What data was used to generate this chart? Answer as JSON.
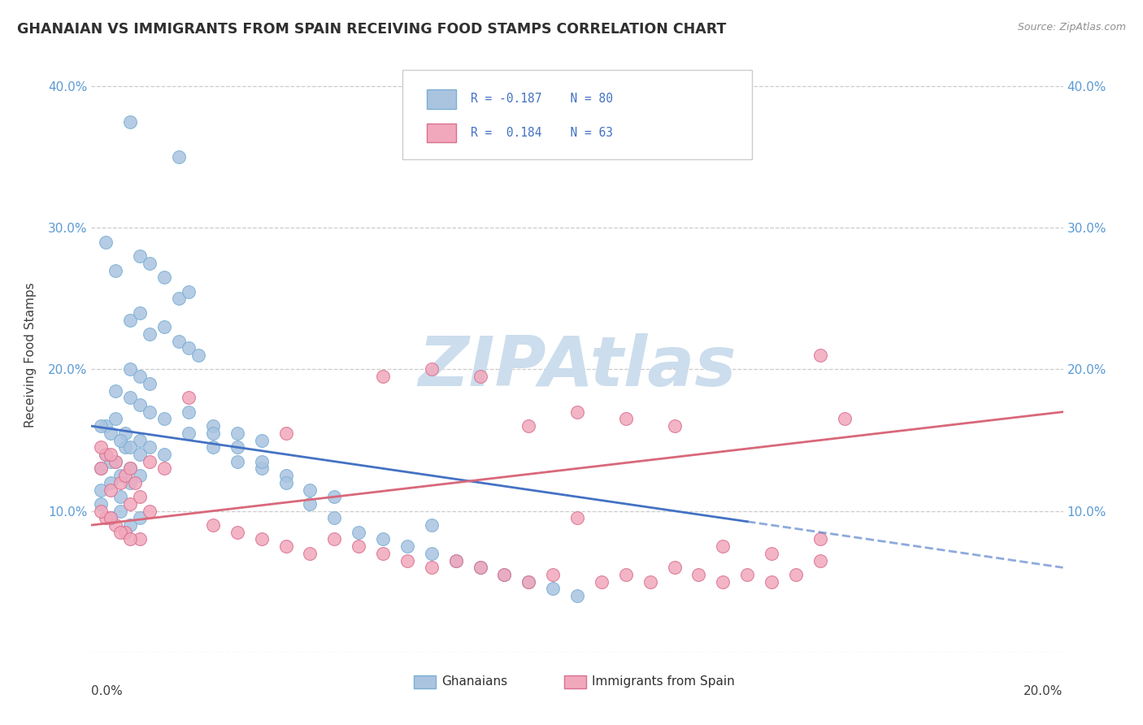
{
  "title": "GHANAIAN VS IMMIGRANTS FROM SPAIN RECEIVING FOOD STAMPS CORRELATION CHART",
  "source": "Source: ZipAtlas.com",
  "ylabel": "Receiving Food Stamps",
  "xlim": [
    0.0,
    0.2
  ],
  "ylim": [
    0.0,
    0.42
  ],
  "yticks": [
    0.0,
    0.1,
    0.2,
    0.3,
    0.4
  ],
  "ytick_labels": [
    "",
    "10.0%",
    "20.0%",
    "30.0%",
    "40.0%"
  ],
  "color_blue": "#aac4e0",
  "color_pink": "#f2a8bc",
  "line_color_blue": "#4472c4",
  "line_color_pink": "#d9687a",
  "watermark": "ZIPAtlas",
  "watermark_color": "#ccdded",
  "legend_blue": "Ghanaians",
  "legend_pink": "Immigrants from Spain",
  "blue_x": [
    0.008,
    0.018,
    0.003,
    0.005,
    0.01,
    0.012,
    0.015,
    0.018,
    0.02,
    0.008,
    0.01,
    0.012,
    0.015,
    0.018,
    0.02,
    0.022,
    0.008,
    0.01,
    0.012,
    0.005,
    0.008,
    0.01,
    0.012,
    0.015,
    0.003,
    0.005,
    0.007,
    0.01,
    0.012,
    0.003,
    0.005,
    0.007,
    0.008,
    0.01,
    0.002,
    0.004,
    0.006,
    0.008,
    0.01,
    0.002,
    0.004,
    0.006,
    0.008,
    0.002,
    0.004,
    0.006,
    0.002,
    0.004,
    0.006,
    0.008,
    0.01,
    0.015,
    0.02,
    0.025,
    0.03,
    0.035,
    0.04,
    0.045,
    0.05,
    0.02,
    0.025,
    0.03,
    0.035,
    0.025,
    0.03,
    0.035,
    0.04,
    0.045,
    0.05,
    0.055,
    0.06,
    0.065,
    0.07,
    0.075,
    0.08,
    0.085,
    0.09,
    0.095,
    0.1,
    0.07
  ],
  "blue_y": [
    0.375,
    0.35,
    0.29,
    0.27,
    0.28,
    0.275,
    0.265,
    0.25,
    0.255,
    0.235,
    0.24,
    0.225,
    0.23,
    0.22,
    0.215,
    0.21,
    0.2,
    0.195,
    0.19,
    0.185,
    0.18,
    0.175,
    0.17,
    0.165,
    0.16,
    0.165,
    0.155,
    0.15,
    0.145,
    0.14,
    0.135,
    0.145,
    0.13,
    0.125,
    0.16,
    0.155,
    0.15,
    0.145,
    0.14,
    0.13,
    0.135,
    0.125,
    0.12,
    0.115,
    0.12,
    0.11,
    0.105,
    0.095,
    0.1,
    0.09,
    0.095,
    0.14,
    0.155,
    0.145,
    0.135,
    0.13,
    0.125,
    0.115,
    0.11,
    0.17,
    0.16,
    0.155,
    0.15,
    0.155,
    0.145,
    0.135,
    0.12,
    0.105,
    0.095,
    0.085,
    0.08,
    0.075,
    0.07,
    0.065,
    0.06,
    0.055,
    0.05,
    0.045,
    0.04,
    0.09
  ],
  "pink_x": [
    0.002,
    0.004,
    0.006,
    0.008,
    0.01,
    0.012,
    0.003,
    0.005,
    0.007,
    0.01,
    0.002,
    0.004,
    0.006,
    0.008,
    0.003,
    0.005,
    0.007,
    0.009,
    0.002,
    0.004,
    0.008,
    0.012,
    0.015,
    0.02,
    0.025,
    0.03,
    0.035,
    0.04,
    0.045,
    0.05,
    0.055,
    0.06,
    0.065,
    0.07,
    0.075,
    0.08,
    0.085,
    0.09,
    0.095,
    0.1,
    0.105,
    0.11,
    0.115,
    0.12,
    0.125,
    0.13,
    0.135,
    0.14,
    0.145,
    0.15,
    0.06,
    0.07,
    0.08,
    0.09,
    0.1,
    0.11,
    0.12,
    0.13,
    0.14,
    0.15,
    0.04,
    0.15,
    0.155
  ],
  "pink_y": [
    0.13,
    0.115,
    0.12,
    0.105,
    0.11,
    0.1,
    0.095,
    0.09,
    0.085,
    0.08,
    0.1,
    0.095,
    0.085,
    0.08,
    0.14,
    0.135,
    0.125,
    0.12,
    0.145,
    0.14,
    0.13,
    0.135,
    0.13,
    0.18,
    0.09,
    0.085,
    0.08,
    0.075,
    0.07,
    0.08,
    0.075,
    0.07,
    0.065,
    0.06,
    0.065,
    0.06,
    0.055,
    0.05,
    0.055,
    0.095,
    0.05,
    0.055,
    0.05,
    0.06,
    0.055,
    0.05,
    0.055,
    0.05,
    0.055,
    0.065,
    0.195,
    0.2,
    0.195,
    0.16,
    0.17,
    0.165,
    0.16,
    0.075,
    0.07,
    0.08,
    0.155,
    0.21,
    0.165
  ]
}
